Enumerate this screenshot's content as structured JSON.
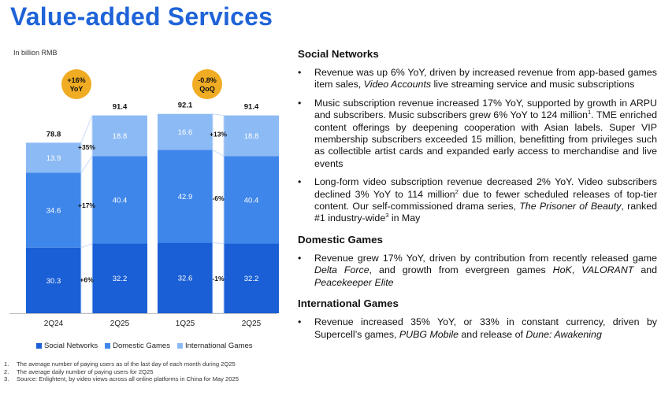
{
  "page": {
    "title": "Value-added Services"
  },
  "chart_data": [
    {
      "type": "bar",
      "stacked": true,
      "unit_label": "In billion RMB",
      "categories": [
        "2Q24",
        "2Q25"
      ],
      "series": [
        {
          "name": "Social Networks",
          "values": [
            30.3,
            32.2
          ]
        },
        {
          "name": "Domestic Games",
          "values": [
            34.6,
            40.4
          ]
        },
        {
          "name": "International Games",
          "values": [
            13.9,
            18.8
          ]
        }
      ],
      "totals": [
        "78.8",
        "91.4"
      ],
      "segment_changes": [
        "+6%",
        "+17%",
        "+35%"
      ],
      "total_change": {
        "value": "+16%",
        "basis": "YoY"
      }
    },
    {
      "type": "bar",
      "stacked": true,
      "categories": [
        "1Q25",
        "2Q25"
      ],
      "series": [
        {
          "name": "Social Networks",
          "values": [
            32.6,
            32.2
          ]
        },
        {
          "name": "Domestic Games",
          "values": [
            42.9,
            40.4
          ]
        },
        {
          "name": "International Games",
          "values": [
            16.6,
            18.8
          ]
        }
      ],
      "totals": [
        "92.1",
        "91.4"
      ],
      "segment_changes": [
        "-1%",
        "-6%",
        "+13%"
      ],
      "total_change": {
        "value": "-0.8%",
        "basis": "QoQ"
      }
    }
  ],
  "legend": [
    {
      "label": "Social Networks",
      "color": "#1a5fd6"
    },
    {
      "label": "Domestic Games",
      "color": "#3f86ea"
    },
    {
      "label": "International Games",
      "color": "#8cbaf4"
    }
  ],
  "colors": {
    "accent": "#1f63d8",
    "badge": "#f0ac22",
    "connector": "#c9dcf8"
  },
  "footnotes": [
    {
      "num": "1.",
      "text": "The average number of paying users as of the last day of each month during 2Q25"
    },
    {
      "num": "2.",
      "text": "The average daily number of paying users for 2Q25"
    },
    {
      "num": "3.",
      "text": "Source: Enlightent, by video views across all online platforms in China for May 2025"
    }
  ],
  "sections": [
    {
      "heading": "Social Networks",
      "bullets": [
        [
          {
            "t": "Revenue was up 6% YoY, driven by increased revenue from app-based games item sales, "
          },
          {
            "t": "Video Accounts",
            "i": true
          },
          {
            "t": " live streaming service and music subscriptions"
          }
        ],
        [
          {
            "t": "Music subscription revenue increased 17% YoY, supported by growth in ARPU and subscribers. Music subscribers grew 6% YoY to 124 million"
          },
          {
            "t": "1",
            "sup": true
          },
          {
            "t": ". TME enriched content offerings by deepening cooperation with Asian labels. Super VIP membership subscribers exceeded 15 million, benefitting from privileges such as collectible artist cards and expanded early access to merchandise and live events"
          }
        ],
        [
          {
            "t": "Long-form video subscription revenue decreased 2% YoY. Video subscribers declined 3% YoY to 114 million"
          },
          {
            "t": "2",
            "sup": true
          },
          {
            "t": " due to fewer scheduled releases of top-tier content. Our self-commissioned drama series, "
          },
          {
            "t": "The Prisoner of Beauty",
            "i": true
          },
          {
            "t": ", ranked #1 industry-wide"
          },
          {
            "t": "3",
            "sup": true
          },
          {
            "t": " in May"
          }
        ]
      ]
    },
    {
      "heading": "Domestic Games",
      "bullets": [
        [
          {
            "t": "Revenue grew 17% YoY, driven by contribution from recently released game "
          },
          {
            "t": "Delta Force",
            "i": true
          },
          {
            "t": ", and growth from evergreen games "
          },
          {
            "t": "HoK",
            "i": true
          },
          {
            "t": ", "
          },
          {
            "t": "VALORANT",
            "i": true
          },
          {
            "t": " and "
          },
          {
            "t": "Peacekeeper Elite",
            "i": true
          }
        ]
      ]
    },
    {
      "heading": "International Games",
      "bullets": [
        [
          {
            "t": "Revenue increased 35% YoY, or 33% in constant currency, driven by Supercell’s games, "
          },
          {
            "t": "PUBG Mobile",
            "i": true
          },
          {
            "t": " and release of "
          },
          {
            "t": "Dune: Awakening",
            "i": true
          }
        ]
      ]
    }
  ]
}
